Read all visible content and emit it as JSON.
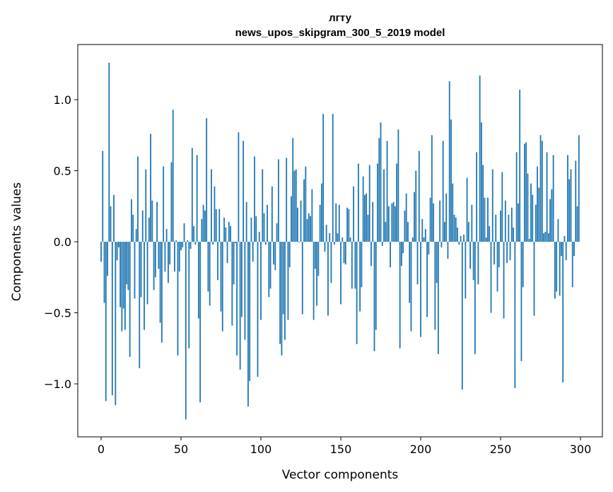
{
  "chart_data": {
    "type": "bar",
    "title_lines": [
      "лгту",
      "news_upos_skipgram_300_5_2019 model"
    ],
    "xlabel": "Vector components",
    "ylabel": "Components values",
    "xlim": [
      -14.6,
      313.7
    ],
    "ylim": [
      -1.373,
      1.388
    ],
    "xticks": [
      0,
      50,
      100,
      150,
      200,
      250,
      300
    ],
    "xtick_labels": [
      "0",
      "50",
      "100",
      "150",
      "200",
      "250",
      "300"
    ],
    "yticks": [
      -1.0,
      -0.5,
      0.0,
      0.5,
      1.0
    ],
    "ytick_labels": [
      "−1.0",
      "−0.5",
      "0.0",
      "0.5",
      "1.0"
    ],
    "grid": false,
    "bar_color": "#1f77b4",
    "values": [
      -0.14,
      0.64,
      -0.43,
      -1.12,
      -0.24,
      1.26,
      0.25,
      -1.08,
      0.33,
      -1.15,
      -0.13,
      -0.04,
      -0.46,
      -0.63,
      -0.47,
      -0.62,
      -0.3,
      -0.34,
      -0.81,
      0.3,
      0.19,
      -0.4,
      0.09,
      0.6,
      -0.89,
      -0.39,
      0.22,
      -0.62,
      0.51,
      -0.44,
      0.17,
      0.76,
      0.29,
      -0.34,
      -0.25,
      0.28,
      -0.19,
      -0.57,
      -0.71,
      0.53,
      -0.21,
      0.09,
      -0.29,
      -0.16,
      0.56,
      0.93,
      -0.21,
      0.01,
      -0.8,
      -0.21,
      -0.06,
      -0.04,
      0.13,
      -1.25,
      0.01,
      -0.75,
      -0.05,
      0.66,
      0.11,
      -0.02,
      0.61,
      -0.54,
      -1.13,
      0.16,
      0.26,
      0.22,
      0.87,
      -0.35,
      -0.45,
      0.51,
      -0.02,
      0.39,
      0.23,
      -0.27,
      0.23,
      -0.49,
      -0.63,
      0.17,
      0.1,
      -0.15,
      0.14,
      0.11,
      -0.59,
      -0.3,
      -0.01,
      -0.8,
      0.77,
      -0.9,
      -0.53,
      0.71,
      -0.69,
      0.28,
      -1.16,
      -0.98,
      0.17,
      -0.14,
      0.6,
      0.18,
      -0.95,
      0.07,
      -0.55,
      0.51,
      0.2,
      -0.02,
      0.26,
      -0.39,
      -0.33,
      0.39,
      -0.16,
      -0.2,
      0.13,
      0.58,
      -0.72,
      -0.8,
      -0.51,
      -0.69,
      0.59,
      -0.55,
      -0.18,
      0.32,
      0.73,
      0.5,
      0.51,
      0.24,
      -0.005,
      0.29,
      -0.51,
      0.44,
      0.53,
      0.16,
      0.2,
      0.18,
      0.37,
      -0.55,
      -0.19,
      -0.45,
      -0.24,
      0.26,
      0.41,
      0.9,
      -0.07,
      0.12,
      -0.52,
      0.06,
      -0.29,
      0.9,
      -0.02,
      0.27,
      0.06,
      0.26,
      -0.44,
      0.03,
      -0.15,
      -0.16,
      0.24,
      0.23,
      0.03,
      -0.33,
      0.39,
      -0.33,
      -0.72,
      0.55,
      -0.49,
      -0.32,
      0.46,
      0.33,
      0.34,
      0.19,
      0.54,
      -0.17,
      0.28,
      -0.77,
      -0.62,
      0.55,
      0.73,
      0.84,
      -0.03,
      0.51,
      0.14,
      0.71,
      0.25,
      -0.18,
      0.27,
      0.28,
      0.25,
      0.55,
      0.79,
      -0.75,
      -0.17,
      -0.08,
      0.22,
      0.34,
      0.14,
      -0.43,
      -0.63,
      0.03,
      0.35,
      0.5,
      -0.3,
      0.64,
      -0.67,
      0.16,
      0.03,
      0.09,
      -0.53,
      -0.09,
      0.31,
      0.75,
      0.27,
      -0.62,
      -0.29,
      -0.79,
      0.29,
      -0.04,
      0.71,
      0.14,
      0.34,
      -0.12,
      1.13,
      0.86,
      0.41,
      0.19,
      0.17,
      0.1,
      -0.02,
      0.04,
      -1.04,
      0.05,
      -0.4,
      0.45,
      0.14,
      -0.19,
      0.26,
      -0.27,
      -0.79,
      0.63,
      -0.3,
      1.17,
      0.84,
      0.54,
      0.31,
      0.03,
      0.31,
      0.11,
      -0.5,
      0.51,
      -0.16,
      0.19,
      -0.35,
      -0.18,
      0.22,
      0.49,
      -0.54,
      0.29,
      -0.15,
      0.19,
      -0.13,
      0.24,
      0.1,
      -1.03,
      0.63,
      0.27,
      1.07,
      -0.84,
      -0.32,
      0.69,
      0.7,
      0.48,
      0.02,
      0.41,
      0.33,
      -0.52,
      0.26,
      0.53,
      0.38,
      0.75,
      0.71,
      0.06,
      0.07,
      0.63,
      0.06,
      0.3,
      0.37,
      0.61,
      -0.4,
      -0.35,
      0.16,
      -0.38,
      -0.1,
      -0.99,
      0.04,
      -0.13,
      0.61,
      0.44,
      0.51,
      -0.32,
      -0.1,
      0.57,
      0.25,
      0.75
    ]
  }
}
